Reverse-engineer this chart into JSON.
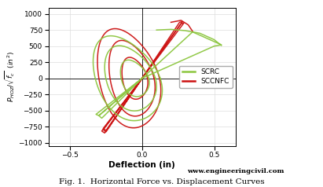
{
  "title": "Fig. 1.  Horizontal Force vs. Displacement Curves",
  "watermark": "www.engineeringcivil.com",
  "xlabel": "Deflection (in)",
  "ylabel": "$P_{HOZ}/\\sqrt{f_c}$ $(in^2)$",
  "xlim": [
    -0.65,
    0.65
  ],
  "ylim": [
    -1050,
    1100
  ],
  "xticks": [
    -0.5,
    0,
    0.5
  ],
  "yticks": [
    -1000,
    -750,
    -500,
    -250,
    0,
    250,
    500,
    750,
    1000
  ],
  "legend_labels": [
    "SCRC",
    "SCCNFC"
  ],
  "background_color": "#FFFFFF",
  "grid_color": "#DDDDDD",
  "scrc_color": "#8CC63F",
  "sccnfc_color": "#CC1111"
}
